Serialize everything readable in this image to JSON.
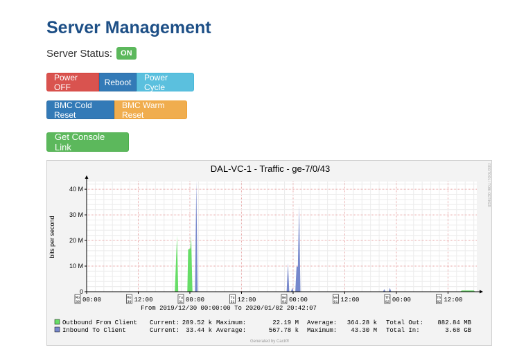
{
  "page": {
    "title": "Server Management"
  },
  "status": {
    "label": "Server Status:",
    "value": "ON"
  },
  "power_buttons": {
    "off": "Power OFF",
    "reboot": "Reboot",
    "cycle": "Power Cycle"
  },
  "bmc_buttons": {
    "cold": "BMC Cold Reset",
    "warm": "BMC Warm Reset"
  },
  "console_button": "Get Console Link",
  "colors": {
    "outbound": "#66dd66",
    "inbound": "#7788cc",
    "title": "#1d4f86"
  },
  "chart_data": {
    "type": "area",
    "title": "DAL-VC-1 - Traffic - ge-7/0/43",
    "ylabel": "bits per second",
    "side_label": "RRDTOOL / TOBI OETIKER",
    "ylim": [
      0,
      43
    ],
    "y_ticks": [
      {
        "v": 0,
        "label": "0"
      },
      {
        "v": 10,
        "label": "10 M"
      },
      {
        "v": 20,
        "label": "20 M"
      },
      {
        "v": 30,
        "label": "30 M"
      },
      {
        "v": 40,
        "label": "40 M"
      }
    ],
    "x_range_hours": [
      0,
      90.7
    ],
    "x_ticks": [
      {
        "h": 0,
        "label": "00:00",
        "day": "Mo 30"
      },
      {
        "h": 12,
        "label": "12:00",
        "day": "Mo 30"
      },
      {
        "h": 24,
        "label": "00:00",
        "day": "Tu 31"
      },
      {
        "h": 36,
        "label": "12:00",
        "day": "Tu 31"
      },
      {
        "h": 48,
        "label": "00:00",
        "day": "We 01"
      },
      {
        "h": 60,
        "label": "12:00",
        "day": "We 01"
      },
      {
        "h": 72,
        "label": "00:00",
        "day": "Th 02"
      },
      {
        "h": 84,
        "label": "12:00",
        "day": "Th 02"
      }
    ],
    "range_text": "From 2019/12/30 00:00:00 To 2020/01/02 20:42:07",
    "series": [
      {
        "name": "Outbound From Client",
        "points": [
          [
            20.5,
            0
          ],
          [
            21.0,
            22.0
          ],
          [
            21.3,
            0
          ],
          [
            23.4,
            0
          ],
          [
            23.6,
            16.5
          ],
          [
            24.1,
            16.8
          ],
          [
            24.3,
            22.0
          ],
          [
            24.6,
            0
          ],
          [
            86.8,
            0
          ],
          [
            87.2,
            0.5
          ],
          [
            90.0,
            0.5
          ],
          [
            90.3,
            0
          ]
        ],
        "current": "289.52 k",
        "maximum": "22.19 M",
        "average": "364.28 k",
        "total_label": "Total Out:",
        "total": "882.84 MB"
      },
      {
        "name": "Inbound To Client",
        "points": [
          [
            25.2,
            0
          ],
          [
            25.5,
            43.3
          ],
          [
            25.8,
            0
          ],
          [
            46.5,
            0
          ],
          [
            46.8,
            11.2
          ],
          [
            47.1,
            0
          ],
          [
            47.5,
            0
          ],
          [
            47.8,
            1.5
          ],
          [
            48.1,
            0
          ],
          [
            48.5,
            0
          ],
          [
            48.8,
            9.8
          ],
          [
            49.1,
            9.8
          ],
          [
            49.4,
            33.8
          ],
          [
            49.7,
            0
          ],
          [
            68.9,
            0
          ],
          [
            69.2,
            1.0
          ],
          [
            69.5,
            0
          ],
          [
            70.2,
            0
          ],
          [
            70.5,
            1.5
          ],
          [
            70.8,
            0
          ]
        ],
        "current": "33.44 k",
        "average": "567.78 k",
        "maximum": "43.30 M",
        "total_label": "Total In:",
        "total": "3.68 GB"
      }
    ],
    "legend_labels": {
      "current": "Current:",
      "maximum": "Maximum:",
      "average": "Average:"
    },
    "footer": "Generated by Cacti®"
  }
}
